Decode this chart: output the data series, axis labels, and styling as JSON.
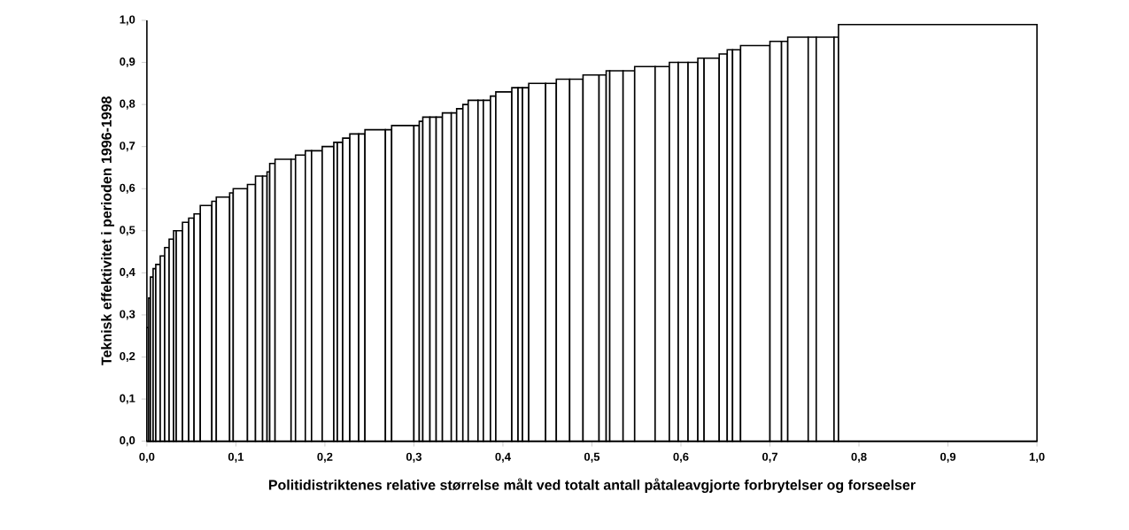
{
  "chart_data": {
    "type": "histogram",
    "xlabel": "Politidistriktenes relative størrelse målt ved totalt antall påtaleavgjorte forbrytelser og forseelser",
    "ylabel": "Teknisk effektivitet i perioden 1996-1998",
    "color": "#ffffff",
    "bins": [
      0,
      0.002,
      0.004,
      0.007,
      0.01,
      0.015,
      0.02,
      0.025,
      0.03,
      0.033,
      0.04,
      0.047,
      0.053,
      0.06,
      0.073,
      0.078,
      0.093,
      0.097,
      0.113,
      0.122,
      0.13,
      0.135,
      0.138,
      0.144,
      0.162,
      0.167,
      0.178,
      0.185,
      0.197,
      0.21,
      0.214,
      0.22,
      0.228,
      0.238,
      0.245,
      0.268,
      0.275,
      0.3,
      0.306,
      0.31,
      0.318,
      0.325,
      0.332,
      0.342,
      0.348,
      0.355,
      0.361,
      0.372,
      0.378,
      0.386,
      0.392,
      0.41,
      0.417,
      0.422,
      0.429,
      0.448,
      0.46,
      0.475,
      0.49,
      0.508,
      0.516,
      0.52,
      0.535,
      0.548,
      0.571,
      0.587,
      0.597,
      0.608,
      0.619,
      0.626,
      0.643,
      0.652,
      0.658,
      0.667,
      0.7,
      0.713,
      0.72,
      0.743,
      0.752,
      0.772,
      0.777,
      1.0
    ],
    "values": [
      0.27,
      0.34,
      0.39,
      0.41,
      0.42,
      0.44,
      0.46,
      0.48,
      0.5,
      0.5,
      0.52,
      0.53,
      0.54,
      0.56,
      0.57,
      0.58,
      0.59,
      0.6,
      0.61,
      0.63,
      0.63,
      0.64,
      0.66,
      0.67,
      0.67,
      0.68,
      0.69,
      0.69,
      0.7,
      0.71,
      0.71,
      0.72,
      0.73,
      0.73,
      0.74,
      0.74,
      0.75,
      0.75,
      0.76,
      0.77,
      0.77,
      0.77,
      0.78,
      0.78,
      0.79,
      0.8,
      0.81,
      0.81,
      0.81,
      0.82,
      0.83,
      0.84,
      0.84,
      0.84,
      0.85,
      0.85,
      0.86,
      0.86,
      0.87,
      0.87,
      0.88,
      0.88,
      0.88,
      0.89,
      0.89,
      0.9,
      0.9,
      0.9,
      0.91,
      0.91,
      0.92,
      0.93,
      0.93,
      0.94,
      0.95,
      0.95,
      0.96,
      0.96,
      0.96,
      0.96,
      0.99
    ],
    "xlim": [
      0,
      1.0
    ],
    "ylim": [
      0,
      1.0
    ],
    "xticks": [
      {
        "value": 0,
        "label": "0,0"
      },
      {
        "value": 0.1,
        "label": "0,1"
      },
      {
        "value": 0.2,
        "label": "0,2"
      },
      {
        "value": 0.3,
        "label": "0,3"
      },
      {
        "value": 0.4,
        "label": "0,4"
      },
      {
        "value": 0.5,
        "label": "0,5"
      },
      {
        "value": 0.6,
        "label": "0,6"
      },
      {
        "value": 0.7,
        "label": "0,7"
      },
      {
        "value": 0.8,
        "label": "0,8"
      },
      {
        "value": 0.9,
        "label": "0,9"
      },
      {
        "value": 1.0,
        "label": "1,0"
      }
    ],
    "yticks": [
      {
        "value": 0,
        "label": "0,0"
      },
      {
        "value": 0.1,
        "label": "0,1"
      },
      {
        "value": 0.2,
        "label": "0,2"
      },
      {
        "value": 0.3,
        "label": "0,3"
      },
      {
        "value": 0.4,
        "label": "0,4"
      },
      {
        "value": 0.5,
        "label": "0,5"
      },
      {
        "value": 0.6,
        "label": "0,6"
      },
      {
        "value": 0.7,
        "label": "0,7"
      },
      {
        "value": 0.8,
        "label": "0,8"
      },
      {
        "value": 0.9,
        "label": "0,9"
      },
      {
        "value": 1.0,
        "label": "1,0"
      }
    ]
  }
}
